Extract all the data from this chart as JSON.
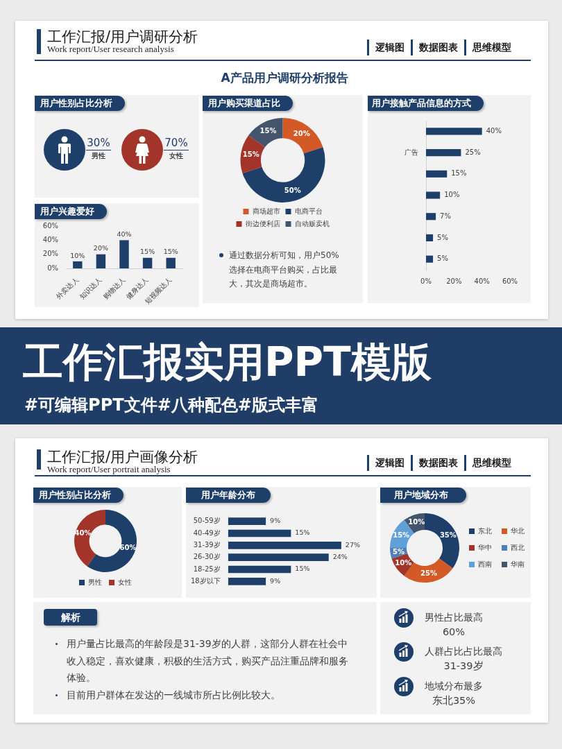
{
  "chart_data": [
    {
      "type": "other",
      "title": "工作汇报/用户调研分析",
      "subtitle": "Work report/User research analysis",
      "annotations": [
        "逻辑图",
        "数据图表",
        "思维模型"
      ]
    },
    {
      "type": "other",
      "title": "A产品用户调研分析报告"
    },
    {
      "type": "other",
      "title": "用户性别占比分析",
      "annotations": [
        "30%",
        "男性",
        "70%",
        "女性"
      ]
    },
    {
      "type": "bar",
      "title": "用户兴趣爱好",
      "categories": [
        "外卖达人",
        "知识达人",
        "购物达人",
        "健身达人",
        "短视频达人"
      ],
      "values": [
        10,
        20,
        40,
        15,
        15
      ],
      "color": "#1f3f6b",
      "value_labels": [
        "10%",
        "20%",
        "40%",
        "15%",
        "15%"
      ],
      "ylim": [
        0,
        60
      ],
      "yticks": [
        {
          "value": 0,
          "label": "0%"
        },
        {
          "value": 20,
          "label": "20%"
        },
        {
          "value": 40,
          "label": "40%"
        },
        {
          "value": 60,
          "label": "60%"
        }
      ]
    },
    {
      "type": "donut",
      "title": "用户购买渠道占比",
      "categories": [
        "商场超市",
        "电商平台",
        "街边便利店",
        "自动贩卖机"
      ],
      "values": [
        20,
        50,
        15,
        15
      ],
      "colors": [
        "#d35a27",
        "#1f3f6b",
        "#a3342a",
        "#44546a"
      ],
      "value_labels": [
        "20%",
        "50%",
        "15%",
        "15%"
      ],
      "legend": "bottom",
      "annotations": [
        "通过数据分析可知，用户50%选择在电商平台购买，占比最大，其次是商场超市。"
      ]
    },
    {
      "type": "bar",
      "orientation": "horizontal",
      "title": "用户接触产品信息的方式",
      "categories": [
        null,
        "广告",
        null,
        null,
        null,
        null,
        null
      ],
      "values": [
        40,
        25,
        15,
        10,
        7,
        5,
        5
      ],
      "color": "#1f3f6b",
      "value_labels": [
        "40%",
        "25%",
        "15%",
        "10%",
        "7%",
        "5%",
        "5%"
      ],
      "xlim": [
        0,
        60
      ],
      "xticks": [
        {
          "value": 0,
          "label": "0%"
        },
        {
          "value": 20,
          "label": "20%"
        },
        {
          "value": 40,
          "label": "40%"
        },
        {
          "value": 60,
          "label": "60%"
        }
      ]
    },
    {
      "type": "other",
      "title": "工作汇报实用PPT模版",
      "subtitle": "#可编辑PPT文件#八种配色#版式丰富"
    },
    {
      "type": "other",
      "title": "工作汇报/用户画像分析",
      "subtitle": "Work report/User portrait analysis",
      "annotations": [
        "逻辑图",
        "数据图表",
        "思维模型"
      ]
    },
    {
      "type": "donut",
      "title": "用户性别占比分析",
      "categories": [
        "男性",
        "女性"
      ],
      "values": [
        60,
        40
      ],
      "colors": [
        "#1f3f6b",
        "#a3342a"
      ],
      "value_labels": [
        "60%",
        "40%"
      ],
      "legend": "bottom"
    },
    {
      "type": "bar",
      "orientation": "horizontal",
      "title": "用户年龄分布",
      "categories": [
        "50-59岁",
        "40-49岁",
        "31-39岁",
        "26-30岁",
        "18-25岁",
        "18岁以下"
      ],
      "values": [
        9,
        15,
        27,
        24,
        15,
        9
      ],
      "color": "#1f3f6b",
      "value_labels": [
        "9%",
        "15%",
        "27%",
        "24%",
        "15%",
        "9%"
      ],
      "tick_labels": "y"
    },
    {
      "type": "donut",
      "title": "用户地域分布",
      "categories": [
        "东北",
        "华北",
        "华中",
        "西北",
        "西南",
        "华南"
      ],
      "values": [
        35,
        25,
        10,
        5,
        15,
        10
      ],
      "colors": [
        "#1f3f6b",
        "#d35a27",
        "#a3342a",
        "#4f7fb8",
        "#5fa0d9",
        "#44546a"
      ],
      "value_labels": [
        "35%",
        "25%",
        "10%",
        "5%",
        "15%",
        "10%"
      ],
      "legend": "right"
    },
    {
      "type": "other",
      "title": "解析",
      "annotations": [
        "用户量占比最高的年龄段是31-39岁的人群，这部分人群在社会中收入稳定，喜欢健康，积极的生活方式，购买产品注重品牌和服务体验。",
        "目前用户群体在发达的一线城市所占比例比较大。"
      ]
    },
    {
      "type": "other",
      "annotations": [
        "男性占比最高",
        "60%",
        "人群占比占比最高",
        "31-39岁",
        "地域分布最多",
        "东北35%"
      ]
    }
  ]
}
